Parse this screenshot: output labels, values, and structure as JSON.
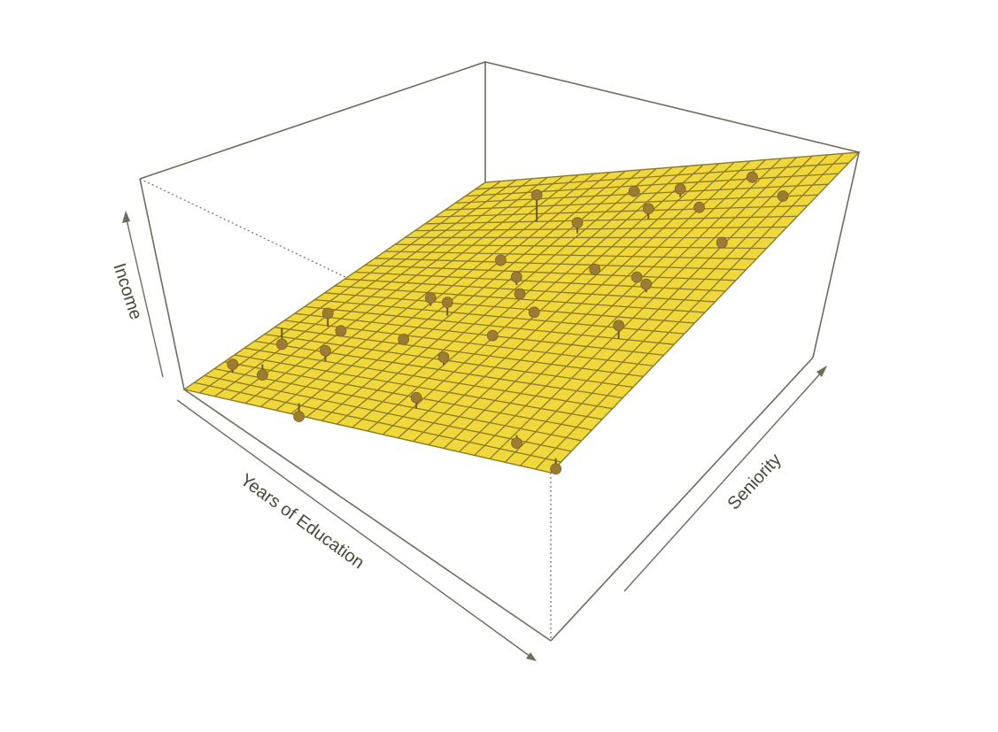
{
  "chart_data": {
    "type": "scatter",
    "subtype": "3d-regression-plane",
    "title": "",
    "axes": {
      "x_label": "Years of Education",
      "y_label": "Seniority",
      "z_label": "Income"
    },
    "plane_grid": {
      "x_divisions": 24,
      "y_divisions": 30
    },
    "points": [
      {
        "u": 0.02,
        "v": 0.3,
        "d": -0.06
      },
      {
        "u": 0.05,
        "v": 0.1,
        "d": 0.03
      },
      {
        "u": 0.09,
        "v": 0.15,
        "d": -0.04
      },
      {
        "u": 0.12,
        "v": 0.33,
        "d": 0.05
      },
      {
        "u": 0.28,
        "v": 0.04,
        "d": -0.05
      },
      {
        "u": 0.18,
        "v": 0.3,
        "d": 0.02
      },
      {
        "u": 0.22,
        "v": 0.2,
        "d": 0.04
      },
      {
        "u": 0.3,
        "v": 0.45,
        "d": 0.03
      },
      {
        "u": 0.35,
        "v": 0.3,
        "d": 0.02
      },
      {
        "u": 0.37,
        "v": 0.42,
        "d": 0.05
      },
      {
        "u": 0.55,
        "v": 0.1,
        "d": 0.04
      },
      {
        "u": 0.5,
        "v": 0.25,
        "d": 0.03
      },
      {
        "u": 0.55,
        "v": 0.35,
        "d": 0.02
      },
      {
        "u": 0.3,
        "v": 0.8,
        "d": 0.1
      },
      {
        "u": 0.35,
        "v": 0.62,
        "d": 0.02
      },
      {
        "u": 0.45,
        "v": 0.55,
        "d": 0.03
      },
      {
        "u": 0.5,
        "v": 0.5,
        "d": 0.02
      },
      {
        "u": 0.58,
        "v": 0.45,
        "d": 0.01
      },
      {
        "u": 0.62,
        "v": 0.6,
        "d": 0.02
      },
      {
        "u": 0.45,
        "v": 0.75,
        "d": 0.04
      },
      {
        "u": 0.48,
        "v": 0.9,
        "d": 0.01
      },
      {
        "u": 0.6,
        "v": 0.8,
        "d": 0.04
      },
      {
        "u": 0.62,
        "v": 0.88,
        "d": 0.03
      },
      {
        "u": 0.75,
        "v": 0.58,
        "d": 0.02
      },
      {
        "u": 0.8,
        "v": 0.55,
        "d": 0.03
      },
      {
        "u": 0.72,
        "v": 0.82,
        "d": 0.02
      },
      {
        "u": 0.78,
        "v": 0.92,
        "d": 0.02
      },
      {
        "u": 0.88,
        "v": 0.7,
        "d": 0.02
      },
      {
        "u": 0.92,
        "v": 0.85,
        "d": 0.02
      },
      {
        "u": 0.85,
        "v": 0.4,
        "d": 0.05
      },
      {
        "u": 0.98,
        "v": 0.04,
        "d": -0.04
      },
      {
        "u": 0.84,
        "v": 0.08,
        "d": -0.03
      }
    ]
  }
}
